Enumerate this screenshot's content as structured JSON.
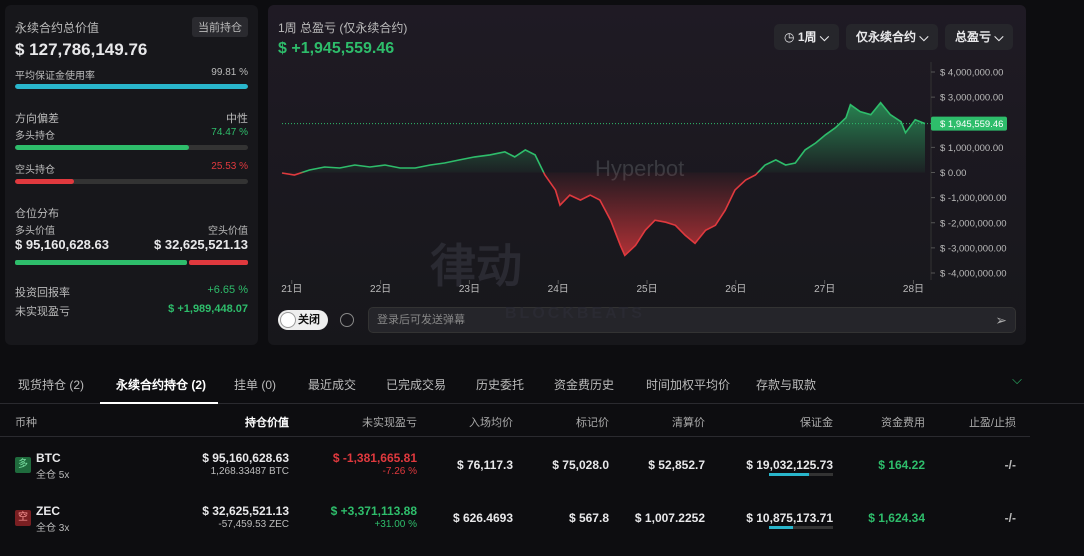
{
  "summary": {
    "title": "永续合约总价值",
    "badge": "当前持仓",
    "total": "$ 127,786,149.76",
    "margin_usage": {
      "label": "平均保证金使用率",
      "value": 99.81,
      "value_label": "99.81 %"
    },
    "bias": {
      "label": "方向偏差",
      "value": "中性"
    },
    "long": {
      "label": "多头持仓",
      "value": 74.47,
      "value_label": "74.47 %"
    },
    "short": {
      "label": "空头持仓",
      "value": 25.53,
      "value_label": "25.53 %"
    },
    "distribution": {
      "label": "仓位分布",
      "long_label": "多头价值",
      "short_label": "空头价值",
      "long_value": 95160628.63,
      "long_value_label": "$ 95,160,628.63",
      "short_value": 32625521.13,
      "short_value_label": "$ 32,625,521.13"
    },
    "roi": {
      "label": "投资回报率",
      "value": "+6.65 %"
    },
    "unrealized": {
      "label": "未实现盈亏",
      "value": "$ +1,989,448.07"
    }
  },
  "chart_controls": [
    "1周",
    "仅永续合约",
    "总盈亏"
  ],
  "chart_data": {
    "type": "line",
    "title": "1周 总盈亏 (仅永续合约)",
    "subtitle": "$ +1,945,559.46",
    "x": [
      20.89,
      21.03,
      21.2,
      21.37,
      21.54,
      21.71,
      21.88,
      22.05,
      22.22,
      22.39,
      22.56,
      22.72,
      22.89,
      23.06,
      23.23,
      23.4,
      23.51,
      23.63,
      23.74,
      23.85,
      23.97,
      24.02,
      24.13,
      24.25,
      24.36,
      24.47,
      24.59,
      24.7,
      24.75,
      24.87,
      24.98,
      25.09,
      25.21,
      25.32,
      25.43,
      25.54,
      25.66,
      25.77,
      25.88,
      25.99,
      26.11,
      26.22,
      26.33,
      26.45,
      26.56,
      26.67,
      26.78,
      26.9,
      27.01,
      27.12,
      27.24,
      27.29,
      27.4,
      27.52,
      27.63,
      27.74,
      27.86,
      27.91,
      28.02,
      28.13
    ],
    "values": [
      -20000,
      -100000,
      100000,
      220000,
      180000,
      300000,
      220000,
      300000,
      180000,
      180000,
      300000,
      380000,
      500000,
      620000,
      700000,
      820000,
      620000,
      900000,
      700000,
      -100000,
      -700000,
      -1300000,
      -900000,
      -1100000,
      -900000,
      -1100000,
      -1900000,
      -2900000,
      -3300000,
      -2900000,
      -2300000,
      -1900000,
      -1980000,
      -2100000,
      -2500000,
      -2820000,
      -2300000,
      -2100000,
      -1500000,
      -700000,
      -300000,
      -100000,
      300000,
      500000,
      300000,
      380000,
      900000,
      1180000,
      1500000,
      1780000,
      2180000,
      2700000,
      2420000,
      2300000,
      2780000,
      2300000,
      2020000,
      1580000,
      2100000,
      1945559.46
    ],
    "current_label": "$ 1,945,559.46",
    "xlim": [
      20.89,
      28.13
    ],
    "xticks": [
      {
        "value": 21,
        "label": "21日"
      },
      {
        "value": 22,
        "label": "22日"
      },
      {
        "value": 23,
        "label": "23日"
      },
      {
        "value": 24,
        "label": "24日"
      },
      {
        "value": 25,
        "label": "25日"
      },
      {
        "value": 26,
        "label": "26日"
      },
      {
        "value": 27,
        "label": "27日"
      },
      {
        "value": 28,
        "label": "28日"
      }
    ],
    "ylim": [
      -4000000,
      4000000
    ],
    "yticks": [
      {
        "value": 4000000,
        "label": "$ 4,000,000.00"
      },
      {
        "value": 3000000,
        "label": "$ 3,000,000.00"
      },
      {
        "value": 2000000,
        "label": "$ 2,000,000.00"
      },
      {
        "value": 1000000,
        "label": "$ 1,000,000.00"
      },
      {
        "value": 0,
        "label": "$ 0.00"
      },
      {
        "value": -1000000,
        "label": "$ -1,000,000.00"
      },
      {
        "value": -2000000,
        "label": "$ -2,000,000.00"
      },
      {
        "value": -3000000,
        "label": "$ -3,000,000.00"
      },
      {
        "value": -4000000,
        "label": "$ -4,000,000.00"
      }
    ],
    "up_color": "#2ebd6b",
    "down_color": "#e0393e"
  },
  "watermark": {
    "brand": "Hyperbot",
    "cn": "律动",
    "en": "BLOCKBEATS"
  },
  "chat": {
    "toggle": "关闭",
    "placeholder": "登录后可发送弹幕"
  },
  "tabs": {
    "items": [
      "现货持仓 (2)",
      "永续合约持仓 (2)",
      "挂单 (0)",
      "最近成交",
      "已完成交易",
      "历史委托",
      "资金费历史",
      "时间加权平均价",
      "存款与取款"
    ],
    "active": 1
  },
  "table": {
    "columns": [
      "币种",
      "持仓价值",
      "未实现盈亏",
      "入场均价",
      "标记价",
      "清算价",
      "保证金",
      "资金费用",
      "止盈/止损"
    ],
    "rows": [
      {
        "side": "多",
        "coin": "BTC",
        "mode": "全仓 5x",
        "value": "$ 95,160,628.63",
        "size": "1,268.33487 BTC",
        "pnl": "$ -1,381,665.81",
        "pnl_pct": "-7.26 %",
        "entry": "$ 76,117.3",
        "mark": "$ 75,028.0",
        "liq": "$ 52,852.7",
        "margin": "$ 19,032,125.73",
        "funding": "$ 164.22",
        "tpsl": "-/-"
      },
      {
        "side": "空",
        "coin": "ZEC",
        "mode": "全仓 3x",
        "value": "$ 32,625,521.13",
        "size": "-57,459.53 ZEC",
        "pnl": "$ +3,371,113.88",
        "pnl_pct": "+31.00 %",
        "entry": "$ 626.4693",
        "mark": "$ 567.8",
        "liq": "$ 1,007.2252",
        "margin": "$ 10,875,173.71",
        "funding": "$ 1,624.34",
        "tpsl": "-/-"
      }
    ]
  }
}
